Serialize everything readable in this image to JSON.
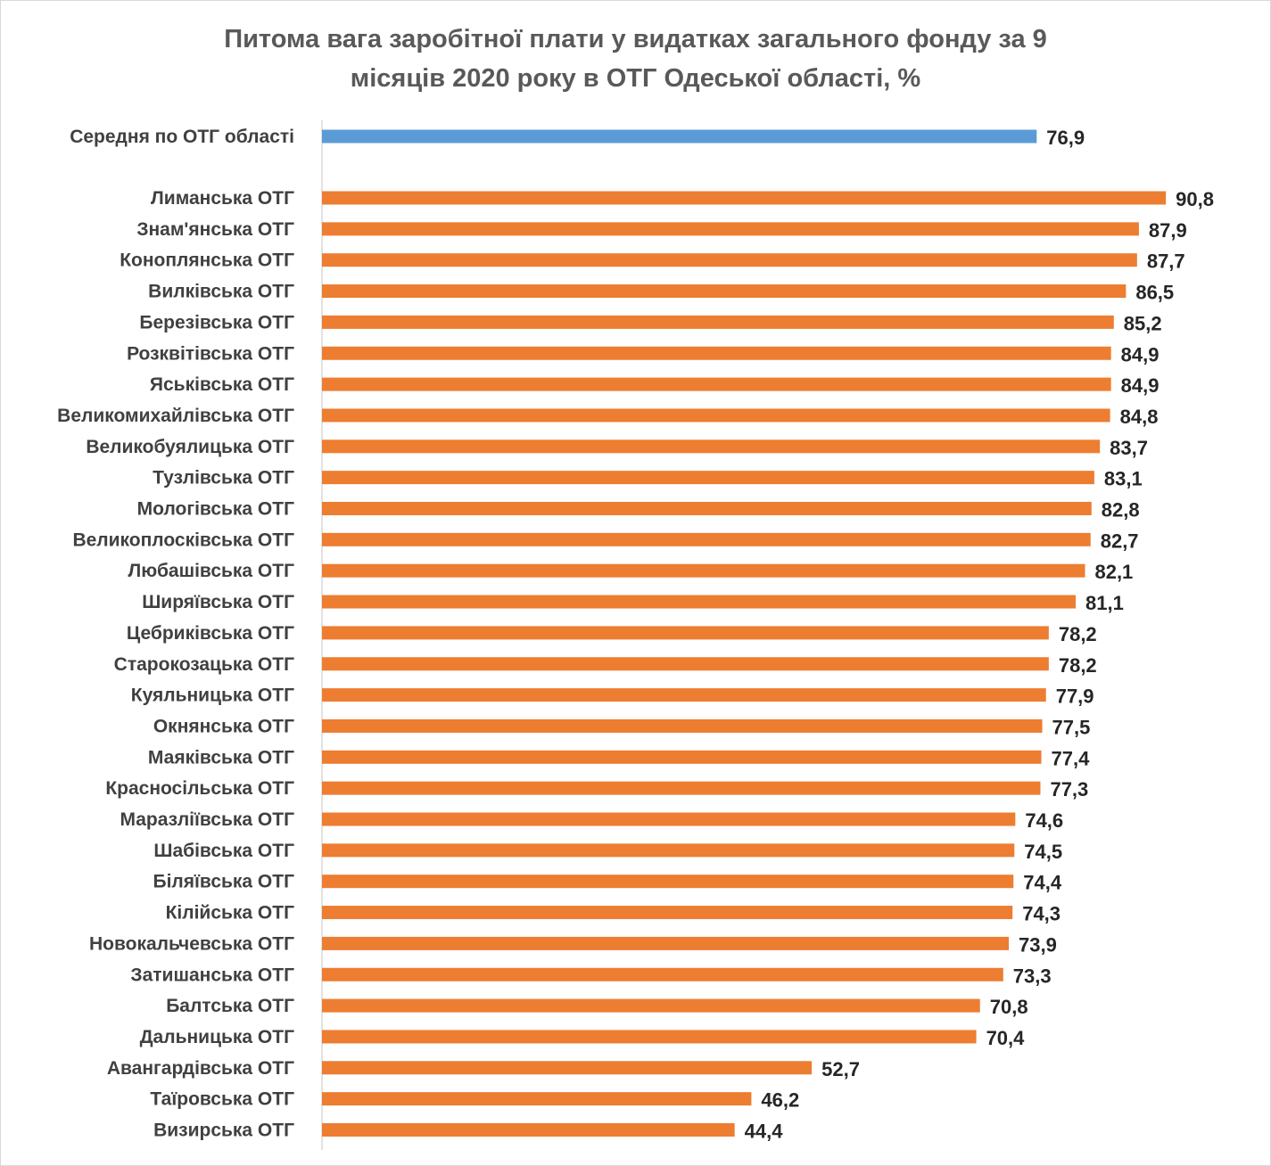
{
  "chart_data": {
    "type": "bar",
    "orientation": "horizontal",
    "title_lines": [
      "Питома вага заробітної плати у видатках загального фонду за 9",
      "місяців 2020 року в ОТГ Одеської області, %"
    ],
    "xlabel": "",
    "ylabel": "",
    "xlim": [
      0,
      92
    ],
    "grid": false,
    "legend": "none",
    "colors": {
      "average": "#5b9bd5",
      "otg": "#ed7d31"
    },
    "average": {
      "category": "Середня по ОТГ області",
      "value": 76.9,
      "value_label": "76,9"
    },
    "categories": [
      "Лиманська ОТГ",
      "Знам'янська ОТГ",
      "Коноплянська ОТГ",
      "Вилківська ОТГ",
      "Березівська ОТГ",
      "Розквітівська ОТГ",
      "Яськівська ОТГ",
      "Великомихайлівська ОТГ",
      "Великобуялицька ОТГ",
      "Тузлівська ОТГ",
      "Мологівська ОТГ",
      "Великоплосківська ОТГ",
      "Любашівська ОТГ",
      "Ширяївська  ОТГ",
      "Цебриківська ОТГ",
      "Старокозацька ОТГ",
      "Куяльницька ОТГ",
      "Окнянська ОТГ",
      "Маяківська ОТГ",
      "Красносільська  ОТГ",
      "Маразліївська ОТГ",
      "Шабівська ОТГ",
      "Біляївська ОТГ",
      "Кілійська ОТГ",
      "Новокальчевська ОТГ",
      "Затишанська ОТГ",
      "Балтська ОТГ",
      "Дальницька ОТГ",
      "Авангардівська ОТГ",
      "Таїровська ОТГ",
      "Визирська ОТГ"
    ],
    "values": [
      90.8,
      87.9,
      87.7,
      86.5,
      85.2,
      84.9,
      84.9,
      84.8,
      83.7,
      83.1,
      82.8,
      82.7,
      82.1,
      81.1,
      78.2,
      78.2,
      77.9,
      77.5,
      77.4,
      77.3,
      74.6,
      74.5,
      74.4,
      74.3,
      73.9,
      73.3,
      70.8,
      70.4,
      52.7,
      46.2,
      44.4
    ],
    "value_labels": [
      "90,8",
      "87,9",
      "87,7",
      "86,5",
      "85,2",
      "84,9",
      "84,9",
      "84,8",
      "83,7",
      "83,1",
      "82,8",
      "82,7",
      "82,1",
      "81,1",
      "78,2",
      "78,2",
      "77,9",
      "77,5",
      "77,4",
      "77,3",
      "74,6",
      "74,5",
      "74,4",
      "74,3",
      "73,9",
      "73,3",
      "70,8",
      "70,4",
      "52,7",
      "46,2",
      "44,4"
    ]
  }
}
